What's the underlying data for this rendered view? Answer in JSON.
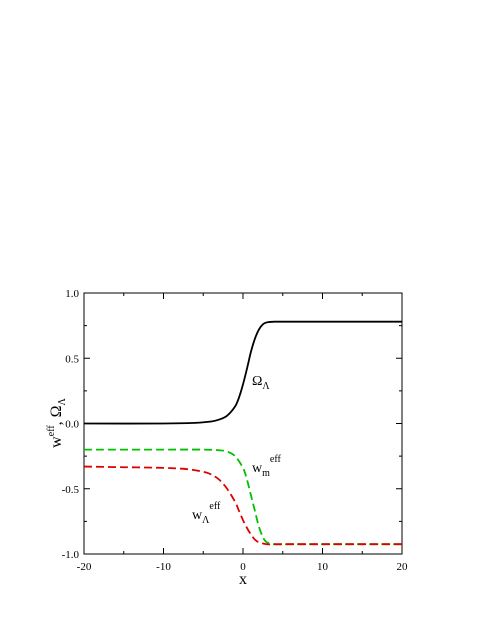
{
  "chart_data": {
    "type": "line",
    "xlabel": "x",
    "ylabel": {
      "base": "w",
      "sup": "eff",
      "sep": ", ",
      "omega": "Ω",
      "sub": "Λ"
    },
    "xlim": [
      -20,
      20
    ],
    "ylim": [
      -1.0,
      1.0
    ],
    "xticks": [
      -20,
      -10,
      0,
      10,
      20
    ],
    "xtick_labels": [
      "-20",
      "-10",
      "0",
      "10",
      "20"
    ],
    "yticks": [
      -1.0,
      -0.5,
      0.0,
      0.5,
      1.0
    ],
    "ytick_labels": [
      "-1.0",
      "-0.5",
      "0.0",
      "0.5",
      "1.0"
    ],
    "grid": false,
    "series": [
      {
        "id": "omega_lambda",
        "color": "#000000",
        "dash": "solid",
        "label": {
          "base": "Ω",
          "sub": "Λ",
          "sup": ""
        },
        "x": [
          -20,
          -10,
          -6,
          -4,
          -3,
          -2,
          -1,
          -0.5,
          0,
          0.5,
          1,
          1.5,
          2,
          2.5,
          3,
          4,
          6,
          10,
          20
        ],
        "y": [
          0.0,
          0.0,
          0.005,
          0.015,
          0.03,
          0.06,
          0.13,
          0.2,
          0.3,
          0.42,
          0.55,
          0.65,
          0.72,
          0.76,
          0.775,
          0.78,
          0.78,
          0.78,
          0.78
        ]
      },
      {
        "id": "w_m_eff",
        "color": "#00c000",
        "dash": "dashed",
        "label": {
          "base": "w",
          "sub": "m",
          "sup": "eff"
        },
        "x": [
          -20,
          -10,
          -5,
          -3,
          -2,
          -1,
          0,
          0.5,
          1,
          1.5,
          2,
          2.5,
          3,
          4,
          6,
          10,
          20
        ],
        "y": [
          -0.2,
          -0.2,
          -0.2,
          -0.205,
          -0.215,
          -0.25,
          -0.34,
          -0.43,
          -0.55,
          -0.67,
          -0.79,
          -0.87,
          -0.91,
          -0.925,
          -0.925,
          -0.925,
          -0.925
        ]
      },
      {
        "id": "w_lambda_eff",
        "color": "#e00000",
        "dash": "dashed",
        "label": {
          "base": "w",
          "sub": "Λ",
          "sup": "eff"
        },
        "x": [
          -20,
          -15,
          -10,
          -7,
          -5,
          -4,
          -3,
          -2,
          -1,
          -0.5,
          0,
          0.5,
          1,
          1.5,
          2,
          3,
          4,
          6,
          10,
          20
        ],
        "y": [
          -0.33,
          -0.335,
          -0.34,
          -0.35,
          -0.37,
          -0.39,
          -0.43,
          -0.5,
          -0.6,
          -0.67,
          -0.74,
          -0.8,
          -0.85,
          -0.89,
          -0.91,
          -0.925,
          -0.925,
          -0.925,
          -0.925,
          -0.925
        ]
      }
    ]
  }
}
